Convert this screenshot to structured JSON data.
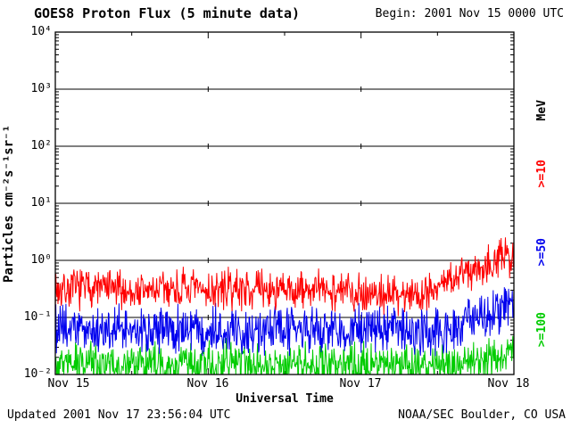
{
  "header": {
    "title": "GOES8 Proton Flux (5 minute data)",
    "begin": "Begin: 2001 Nov 15 0000 UTC"
  },
  "footer": {
    "updated": "Updated 2001 Nov 17 23:56:04 UTC",
    "credit": "NOAA/SEC Boulder, CO USA"
  },
  "chart_data": {
    "type": "line",
    "title": "GOES8 Proton Flux (5 minute data)",
    "xlabel": "Universal Time",
    "ylabel": "Particles cm⁻²s⁻¹sr⁻¹",
    "x_start": "2001 Nov 15 0000 UTC",
    "x_days": [
      "Nov 15",
      "Nov 16",
      "Nov 17",
      "Nov 18"
    ],
    "x_span_days": 3,
    "cadence_minutes": 5,
    "y_scale": "log",
    "ylim": [
      0.01,
      10000
    ],
    "y_ticks": [
      "10⁻²",
      "10⁻¹",
      "10⁰",
      "10¹",
      "10²",
      "10³",
      "10⁴"
    ],
    "mev_label": "MeV",
    "grid": "solid horizontal lines at each decade",
    "legend_position": "right-rotated",
    "series": [
      {
        "name": ">=10 MeV",
        "label": ">=10",
        "color": "#ff0000",
        "noise_dex": 0.42,
        "seed": 7,
        "trend": [
          [
            0,
            0.3
          ],
          [
            0.25,
            0.34
          ],
          [
            0.5,
            0.28
          ],
          [
            0.75,
            0.32
          ],
          [
            1.0,
            0.29
          ],
          [
            1.25,
            0.33
          ],
          [
            1.5,
            0.28
          ],
          [
            1.75,
            0.31
          ],
          [
            2.0,
            0.28
          ],
          [
            2.2,
            0.25
          ],
          [
            2.4,
            0.27
          ],
          [
            2.55,
            0.4
          ],
          [
            2.7,
            0.65
          ],
          [
            2.85,
            0.95
          ],
          [
            3.0,
            1.25
          ]
        ]
      },
      {
        "name": ">=50 MeV",
        "label": ">=50",
        "color": "#0000ee",
        "noise_dex": 0.5,
        "seed": 1234,
        "trend": [
          [
            0,
            0.062
          ],
          [
            0.5,
            0.058
          ],
          [
            1.0,
            0.065
          ],
          [
            1.5,
            0.058
          ],
          [
            2.0,
            0.062
          ],
          [
            2.3,
            0.055
          ],
          [
            2.6,
            0.06
          ],
          [
            2.75,
            0.09
          ],
          [
            2.9,
            0.13
          ],
          [
            3.0,
            0.18
          ]
        ]
      },
      {
        "name": ">=100 MeV",
        "label": ">=100",
        "color": "#00cc00",
        "noise_dex": 0.45,
        "seed": 99,
        "trend": [
          [
            0,
            0.016
          ],
          [
            0.5,
            0.0145
          ],
          [
            1.0,
            0.016
          ],
          [
            1.5,
            0.0145
          ],
          [
            2.0,
            0.0155
          ],
          [
            2.5,
            0.0145
          ],
          [
            2.75,
            0.016
          ],
          [
            3.0,
            0.022
          ]
        ]
      }
    ]
  }
}
